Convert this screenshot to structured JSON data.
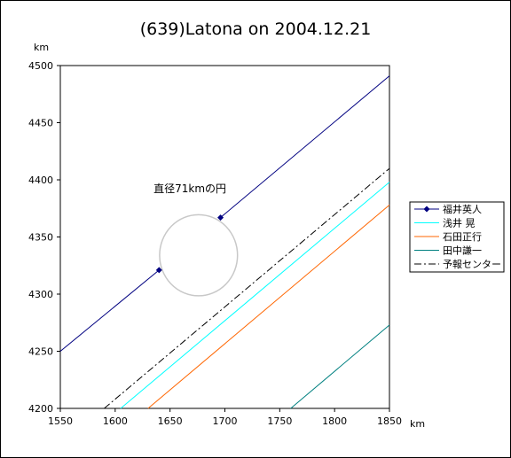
{
  "chart_data": {
    "type": "line",
    "title": "(639)Latona on 2004.12.21",
    "xlabel": "km",
    "ylabel": "km",
    "xlim": [
      1550,
      1850
    ],
    "ylim": [
      4200,
      4500
    ],
    "xticks": [
      1550,
      1600,
      1650,
      1700,
      1750,
      1800,
      1850
    ],
    "yticks": [
      4200,
      4250,
      4300,
      4350,
      4400,
      4450,
      4500
    ],
    "grid": false,
    "legend_position": "right",
    "annotation": {
      "text": "直径71kmの円",
      "x": 1635,
      "y": 4389
    },
    "circle": {
      "center_x": 1676,
      "center_y": 4334,
      "diameter": 71,
      "color": "#c8c8c8"
    },
    "series": [
      {
        "name": "福井英人",
        "color": "#000080",
        "style": "solid",
        "marker": "diamond",
        "segments": [
          [
            [
              1550,
              4250
            ],
            [
              1640,
              4321
            ]
          ],
          [
            [
              1696,
              4367
            ],
            [
              1850,
              4491
            ]
          ]
        ],
        "points": [
          [
            1640,
            4321
          ],
          [
            1696,
            4367
          ]
        ]
      },
      {
        "name": "浅井 晃",
        "color": "#00ffff",
        "style": "solid",
        "segments": [
          [
            [
              1605,
              4200
            ],
            [
              1850,
              4398
            ]
          ]
        ]
      },
      {
        "name": "石田正行",
        "color": "#ff6600",
        "style": "solid",
        "segments": [
          [
            [
              1630,
              4200
            ],
            [
              1850,
              4378
            ]
          ]
        ]
      },
      {
        "name": "田中謙一",
        "color": "#008080",
        "style": "solid",
        "segments": [
          [
            [
              1760,
              4200
            ],
            [
              1850,
              4273
            ]
          ]
        ]
      },
      {
        "name": "予報センター",
        "color": "#000000",
        "style": "dashdot",
        "segments": [
          [
            [
              1590,
              4200
            ],
            [
              1850,
              4410
            ]
          ]
        ]
      }
    ]
  }
}
